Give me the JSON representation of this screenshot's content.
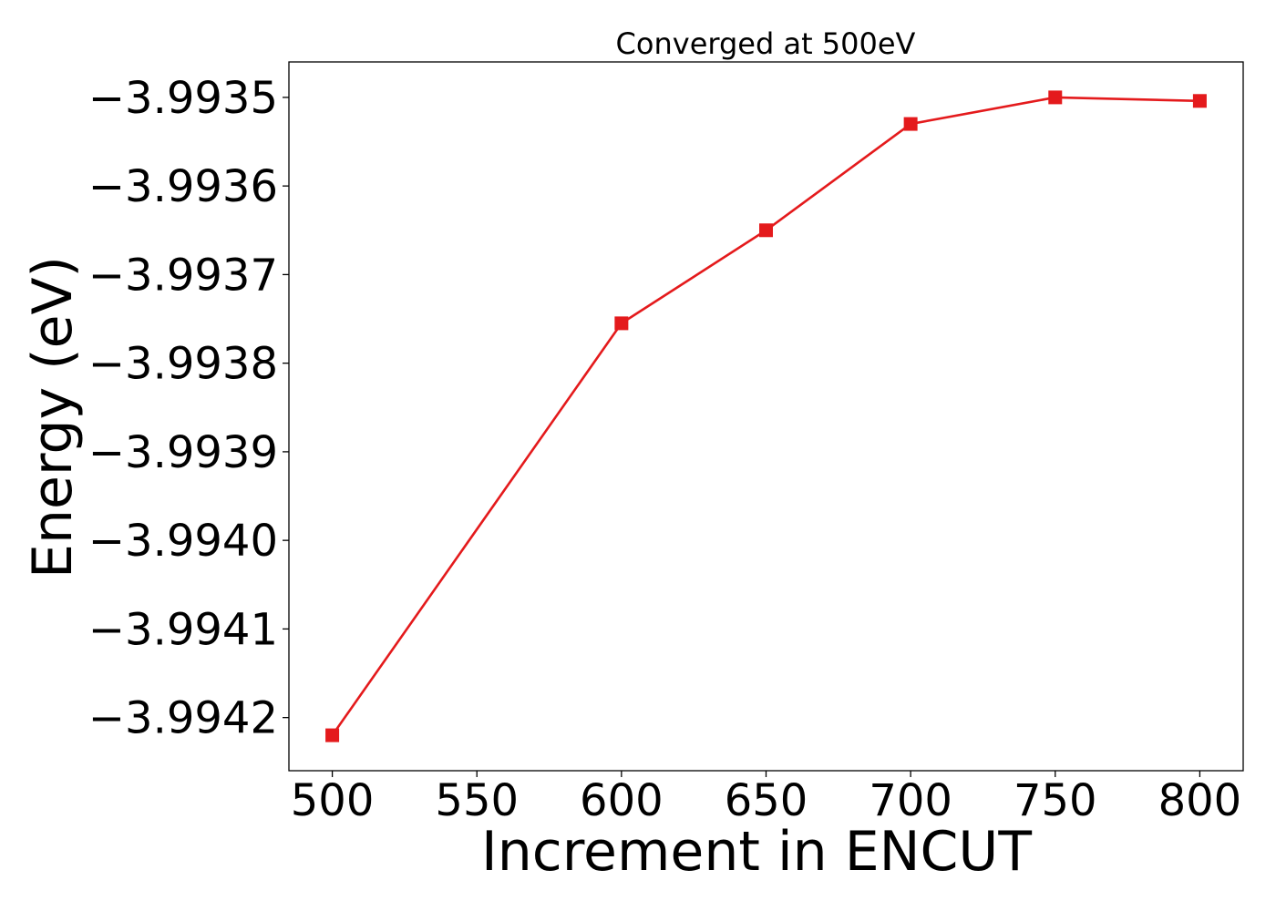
{
  "chart_data": {
    "type": "line",
    "title": "Converged at 500eV",
    "xlabel": "Increment in ENCUT",
    "ylabel": "Energy (eV)",
    "x": [
      500,
      600,
      650,
      700,
      750,
      800
    ],
    "series": [
      {
        "values": [
          -3.99422,
          -3.993755,
          -3.99365,
          -3.99353,
          -3.9935,
          -3.993504
        ],
        "color": "#e41a1c",
        "marker": "square"
      }
    ],
    "xticks": [
      500,
      550,
      600,
      650,
      700,
      750,
      800
    ],
    "xtick_labels": [
      "500",
      "550",
      "600",
      "650",
      "700",
      "750",
      "800"
    ],
    "yticks": [
      -3.9935,
      -3.9936,
      -3.9937,
      -3.9938,
      -3.9939,
      -3.994,
      -3.9941,
      -3.9942
    ],
    "ytick_labels": [
      "−3.9935",
      "−3.9936",
      "−3.9937",
      "−3.9938",
      "−3.9939",
      "−3.9940",
      "−3.9941",
      "−3.9942"
    ],
    "xlim": [
      485,
      815
    ],
    "ylim": [
      -3.99426,
      -3.99346
    ],
    "grid": false,
    "legend": false
  }
}
